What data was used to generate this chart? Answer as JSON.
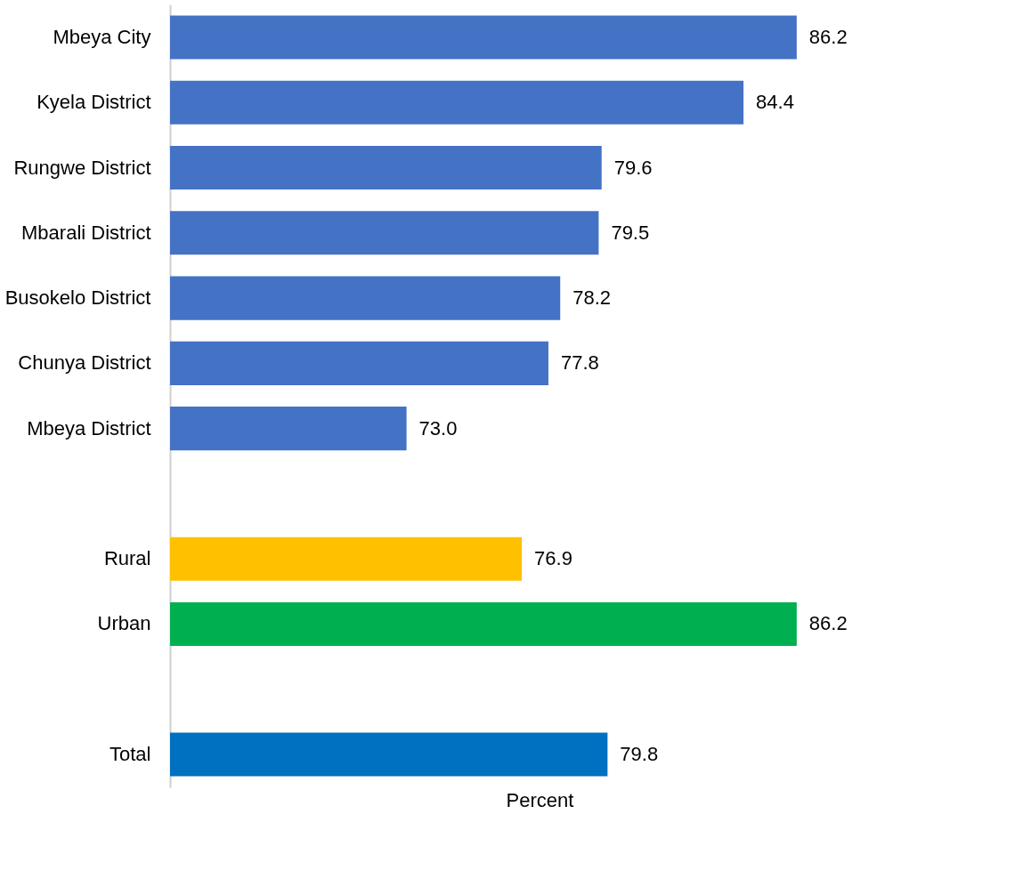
{
  "chart_data": {
    "type": "bar",
    "orientation": "horizontal",
    "xlabel": "Percent",
    "categories": [
      "Mbeya City",
      "Kyela District",
      "Rungwe District",
      "Mbarali District",
      "Busokelo District",
      "Chunya District",
      "Mbeya District",
      null,
      "Rural",
      "Urban",
      null,
      "Total"
    ],
    "values": [
      86.2,
      84.4,
      79.6,
      79.5,
      78.2,
      77.8,
      73.0,
      null,
      76.9,
      86.2,
      null,
      79.8
    ],
    "value_labels": [
      "86.2",
      "84.4",
      "79.6",
      "79.5",
      "78.2",
      "77.8",
      "73.0",
      null,
      "76.9",
      "86.2",
      null,
      "79.8"
    ],
    "colors": [
      "#4472c4",
      "#4472c4",
      "#4472c4",
      "#4472c4",
      "#4472c4",
      "#4472c4",
      "#4472c4",
      null,
      "#ffc000",
      "#00b050",
      null,
      "#0070c0"
    ],
    "xlim": [
      65,
      90
    ],
    "tick_labels": "y",
    "grid": false
  }
}
